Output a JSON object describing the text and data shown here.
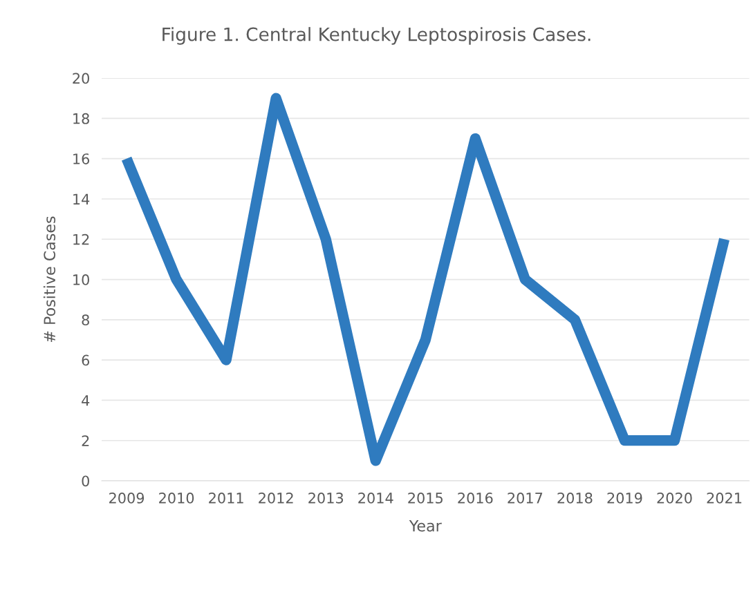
{
  "chart_data": {
    "type": "line",
    "title": "Figure 1. Central Kentucky Leptospirosis Cases.",
    "xlabel": "Year",
    "ylabel": "# Positive Cases",
    "categories": [
      "2009",
      "2010",
      "2011",
      "2012",
      "2013",
      "2014",
      "2015",
      "2016",
      "2017",
      "2018",
      "2019",
      "2020",
      "2021"
    ],
    "series": [
      {
        "color": "#2f7bbf",
        "values": [
          16,
          10,
          6,
          19,
          12,
          1,
          7,
          17,
          10,
          8,
          2,
          2,
          12
        ]
      }
    ],
    "ylim": [
      0,
      20
    ],
    "yticks": [
      0,
      2,
      4,
      6,
      8,
      10,
      12,
      14,
      16,
      18,
      20
    ],
    "grid": "y",
    "marker": "none",
    "line_style": "solid",
    "legend": false
  }
}
